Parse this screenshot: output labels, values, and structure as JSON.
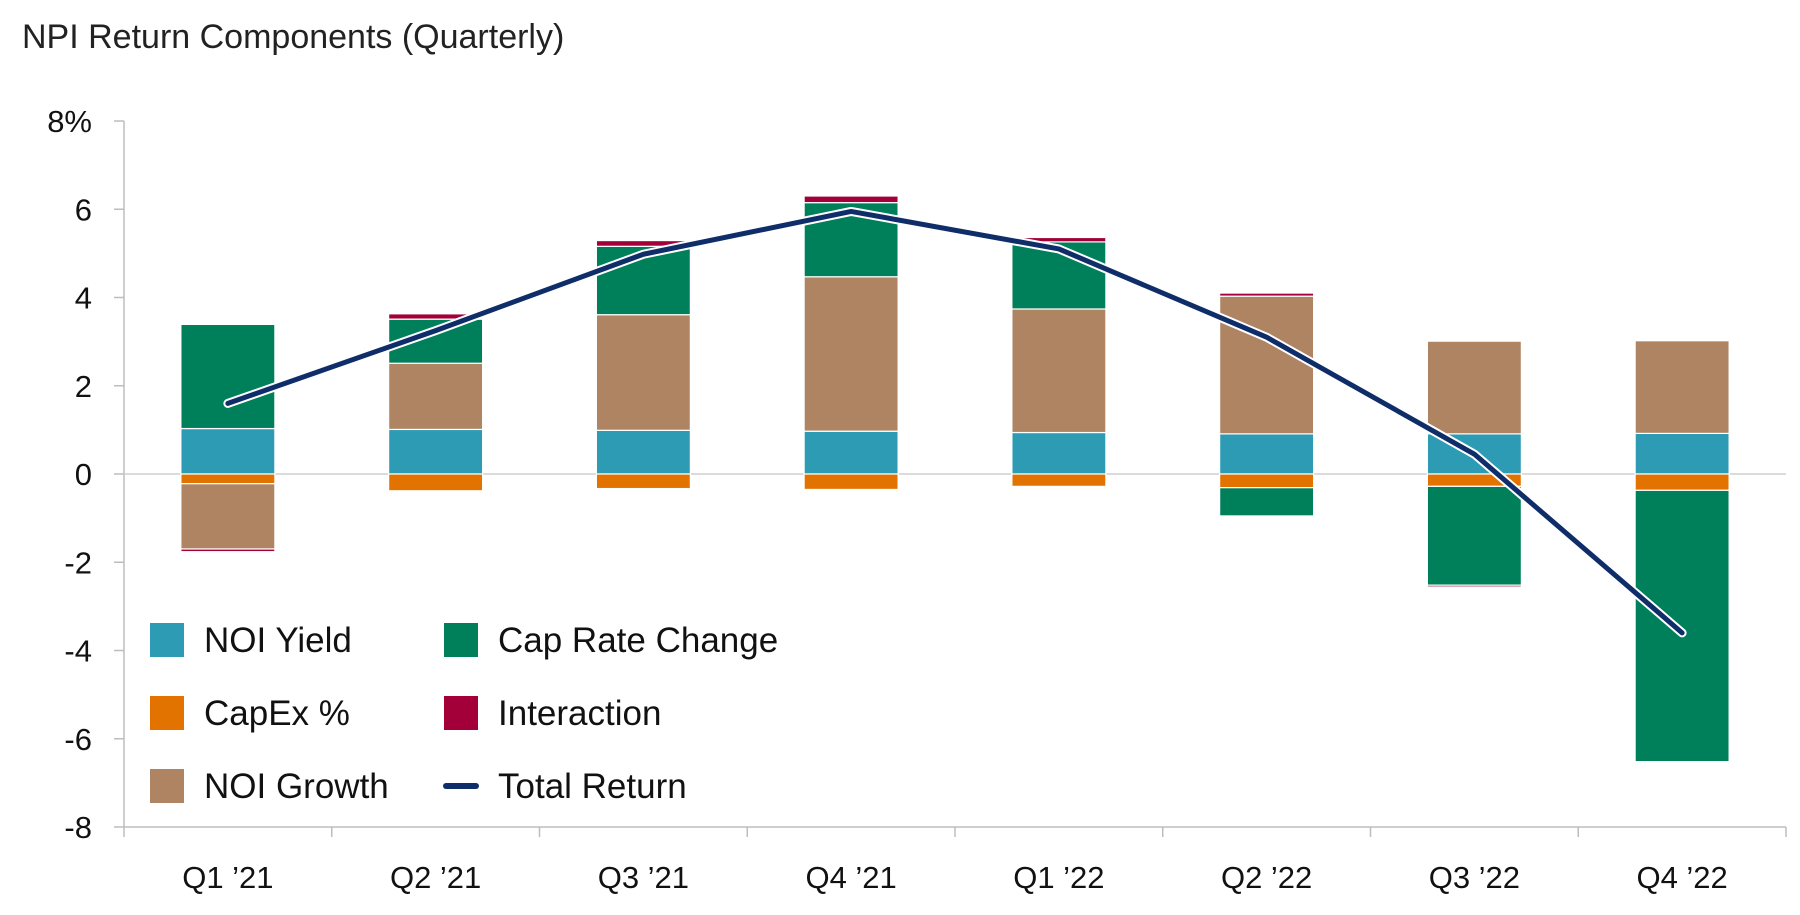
{
  "chart_data": {
    "type": "bar",
    "subtype": "stacked-bar-with-line",
    "title": "NPI Return Components (Quarterly)",
    "xlabel": "",
    "ylabel": "",
    "ylim": [
      -8,
      8
    ],
    "y_ticks": [
      {
        "value": 8,
        "label": "8%"
      },
      {
        "value": 6,
        "label": "6"
      },
      {
        "value": 4,
        "label": "4"
      },
      {
        "value": 2,
        "label": "2"
      },
      {
        "value": 0,
        "label": "0"
      },
      {
        "value": -2,
        "label": "-2"
      },
      {
        "value": -4,
        "label": "-4"
      },
      {
        "value": -6,
        "label": "-6"
      },
      {
        "value": -8,
        "label": "-8"
      }
    ],
    "grid": false,
    "legend_position": "bottom-left",
    "categories": [
      "Q1 ’21",
      "Q2 ’21",
      "Q3 ’21",
      "Q4 ’21",
      "Q1 ’22",
      "Q2 ’22",
      "Q3 ’22",
      "Q4 ’22"
    ],
    "series": [
      {
        "name": "NOI Yield",
        "kind": "bar",
        "color": "#2E9BB5",
        "values": [
          1.03,
          1.01,
          0.99,
          0.97,
          0.94,
          0.91,
          0.91,
          0.92
        ]
      },
      {
        "name": "CapEx %",
        "kind": "bar",
        "color": "#E37300",
        "values": [
          -0.22,
          -0.38,
          -0.33,
          -0.35,
          -0.28,
          -0.31,
          -0.28,
          -0.37
        ]
      },
      {
        "name": "NOI Growth",
        "kind": "bar",
        "color": "#AE8463",
        "values": [
          -1.48,
          1.5,
          2.62,
          3.5,
          2.8,
          3.12,
          2.1,
          2.1
        ]
      },
      {
        "name": "Cap Rate Change",
        "kind": "bar",
        "color": "#00805A",
        "values": [
          2.36,
          1.0,
          1.55,
          1.68,
          1.52,
          -0.64,
          -2.24,
          -6.15
        ]
      },
      {
        "name": "Interaction",
        "kind": "bar",
        "color": "#A3003A",
        "values": [
          -0.06,
          0.12,
          0.13,
          0.15,
          0.1,
          0.07,
          -0.04,
          -0.02
        ]
      },
      {
        "name": "Total Return",
        "kind": "line",
        "color": "#0F2D69",
        "values": [
          1.6,
          3.25,
          4.98,
          5.95,
          5.1,
          3.1,
          0.45,
          -3.6
        ]
      }
    ],
    "legend": [
      {
        "name": "NOI Yield",
        "color": "#2E9BB5",
        "marker": "square"
      },
      {
        "name": "Cap Rate Change",
        "color": "#00805A",
        "marker": "square"
      },
      {
        "name": "CapEx %",
        "color": "#E37300",
        "marker": "square"
      },
      {
        "name": "Interaction",
        "color": "#A3003A",
        "marker": "square"
      },
      {
        "name": "NOI Growth",
        "color": "#AE8463",
        "marker": "square"
      },
      {
        "name": "Total Return",
        "color": "#0F2D69",
        "marker": "line"
      }
    ]
  }
}
